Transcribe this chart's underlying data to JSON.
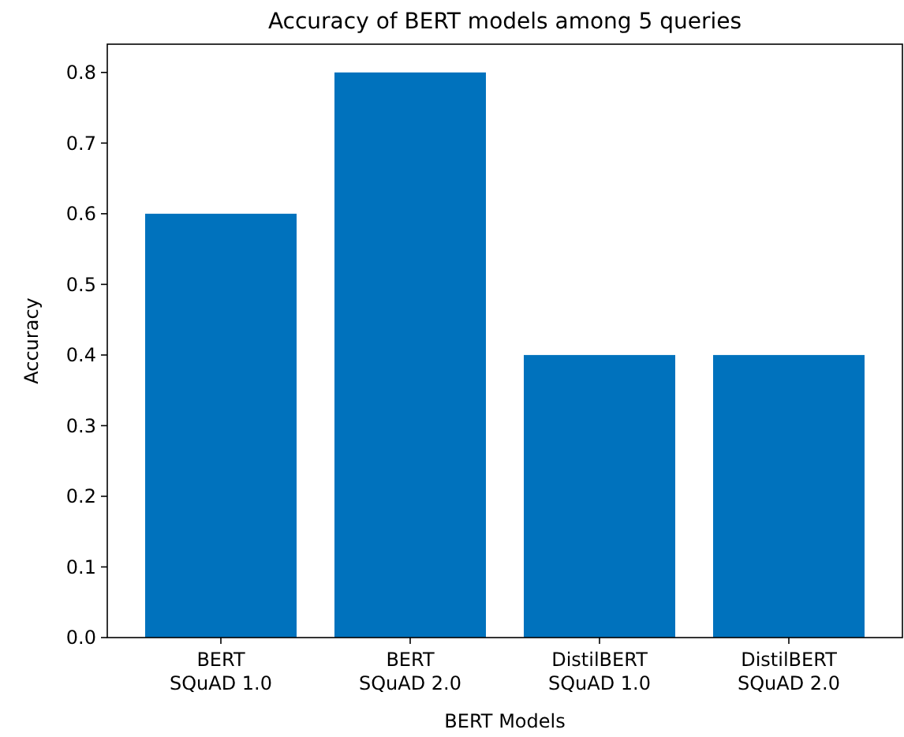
{
  "chart_data": {
    "type": "bar",
    "title": "Accuracy of BERT models among 5 queries",
    "xlabel": "BERT Models",
    "ylabel": "Accuracy",
    "categories": [
      "BERT\nSQuAD 1.0",
      "BERT\nSQuAD 2.0",
      "DistilBERT\nSQuAD 1.0",
      "DistilBERT\nSQuAD 2.0"
    ],
    "values": [
      0.6,
      0.8,
      0.4,
      0.4
    ],
    "color": "#0072bd",
    "ylim": [
      0,
      0.84
    ],
    "yticks": [
      {
        "value": 0,
        "label": "0.0"
      },
      0.1,
      0.2,
      0.3,
      0.4,
      0.5,
      0.6,
      0.7,
      0.8
    ],
    "grid": false
  }
}
